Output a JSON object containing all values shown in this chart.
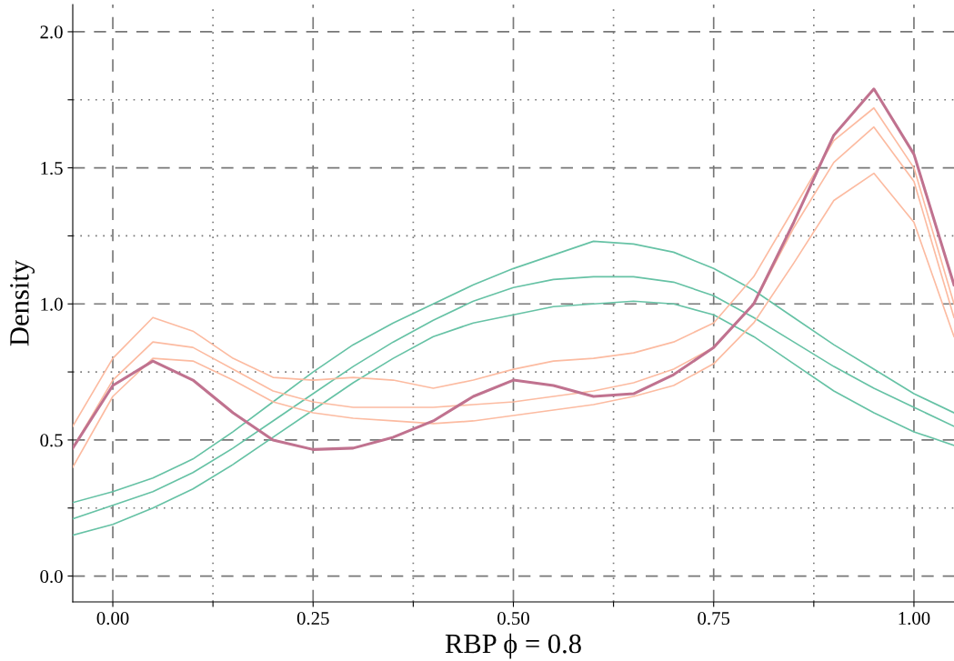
{
  "chart_data": {
    "type": "line",
    "xlabel": "RBP ϕ = 0.8",
    "ylabel": "Density",
    "x": [
      -0.05,
      0,
      0.05,
      0.1,
      0.15,
      0.2,
      0.25,
      0.3,
      0.35,
      0.4,
      0.45,
      0.5,
      0.55,
      0.6,
      0.65,
      0.7,
      0.75,
      0.8,
      0.85,
      0.9,
      0.95,
      1.0,
      1.05
    ],
    "series": [
      {
        "color": "#66c2a5",
        "values": [
          0.27,
          0.31,
          0.36,
          0.43,
          0.53,
          0.64,
          0.75,
          0.85,
          0.93,
          1.0,
          1.07,
          1.13,
          1.18,
          1.23,
          1.22,
          1.19,
          1.13,
          1.05,
          0.95,
          0.85,
          0.76,
          0.67,
          0.6
        ]
      },
      {
        "color": "#66c2a5",
        "values": [
          0.21,
          0.26,
          0.31,
          0.38,
          0.47,
          0.57,
          0.67,
          0.77,
          0.86,
          0.94,
          1.01,
          1.06,
          1.09,
          1.1,
          1.1,
          1.08,
          1.03,
          0.95,
          0.86,
          0.77,
          0.69,
          0.62,
          0.55
        ]
      },
      {
        "color": "#66c2a5",
        "values": [
          0.15,
          0.19,
          0.25,
          0.32,
          0.41,
          0.51,
          0.61,
          0.71,
          0.8,
          0.88,
          0.93,
          0.96,
          0.99,
          1.0,
          1.01,
          1.0,
          0.96,
          0.88,
          0.78,
          0.68,
          0.6,
          0.53,
          0.48
        ]
      },
      {
        "color": "#fcbba1",
        "values": [
          0.55,
          0.8,
          0.95,
          0.9,
          0.8,
          0.73,
          0.72,
          0.73,
          0.72,
          0.69,
          0.72,
          0.76,
          0.79,
          0.8,
          0.82,
          0.86,
          0.93,
          1.1,
          1.35,
          1.6,
          1.72,
          1.5,
          1.0
        ]
      },
      {
        "color": "#fcbba1",
        "values": [
          0.47,
          0.72,
          0.86,
          0.84,
          0.76,
          0.68,
          0.64,
          0.62,
          0.62,
          0.62,
          0.63,
          0.64,
          0.66,
          0.68,
          0.71,
          0.76,
          0.84,
          1.0,
          1.28,
          1.52,
          1.65,
          1.45,
          0.95
        ]
      },
      {
        "color": "#fcbba1",
        "values": [
          0.4,
          0.66,
          0.8,
          0.79,
          0.72,
          0.64,
          0.6,
          0.58,
          0.57,
          0.56,
          0.57,
          0.59,
          0.61,
          0.63,
          0.66,
          0.7,
          0.78,
          0.93,
          1.15,
          1.38,
          1.48,
          1.3,
          0.88
        ]
      },
      {
        "color": "#c0728f",
        "values": [
          0.47,
          0.7,
          0.79,
          0.72,
          0.6,
          0.5,
          0.465,
          0.47,
          0.51,
          0.57,
          0.66,
          0.72,
          0.7,
          0.66,
          0.67,
          0.74,
          0.84,
          1.0,
          1.3,
          1.62,
          1.79,
          1.55,
          1.07
        ]
      }
    ],
    "xlim": [
      -0.05,
      1.05
    ],
    "ylim": [
      -0.095,
      2.1
    ],
    "xticks": [
      {
        "value": 0,
        "label": "0.00"
      },
      {
        "value": 0.125,
        "label": null
      },
      {
        "value": 0.25,
        "label": "0.25"
      },
      {
        "value": 0.375,
        "label": null
      },
      {
        "value": 0.5,
        "label": "0.50"
      },
      {
        "value": 0.625,
        "label": null
      },
      {
        "value": 0.75,
        "label": "0.75"
      },
      {
        "value": 0.875,
        "label": null
      },
      {
        "value": 1,
        "label": "1.00"
      }
    ],
    "yticks": [
      {
        "value": 0,
        "label": "0.0"
      },
      {
        "value": 0.25,
        "label": null
      },
      {
        "value": 0.5,
        "label": "0.5"
      },
      {
        "value": 0.75,
        "label": null
      },
      {
        "value": 1,
        "label": "1.0"
      },
      {
        "value": 1.25,
        "label": null
      },
      {
        "value": 1.5,
        "label": "1.5"
      },
      {
        "value": 1.75,
        "label": null
      },
      {
        "value": 2,
        "label": "2.0"
      }
    ],
    "grid": true,
    "legend": false,
    "marker": "none",
    "line_style": "solid"
  }
}
